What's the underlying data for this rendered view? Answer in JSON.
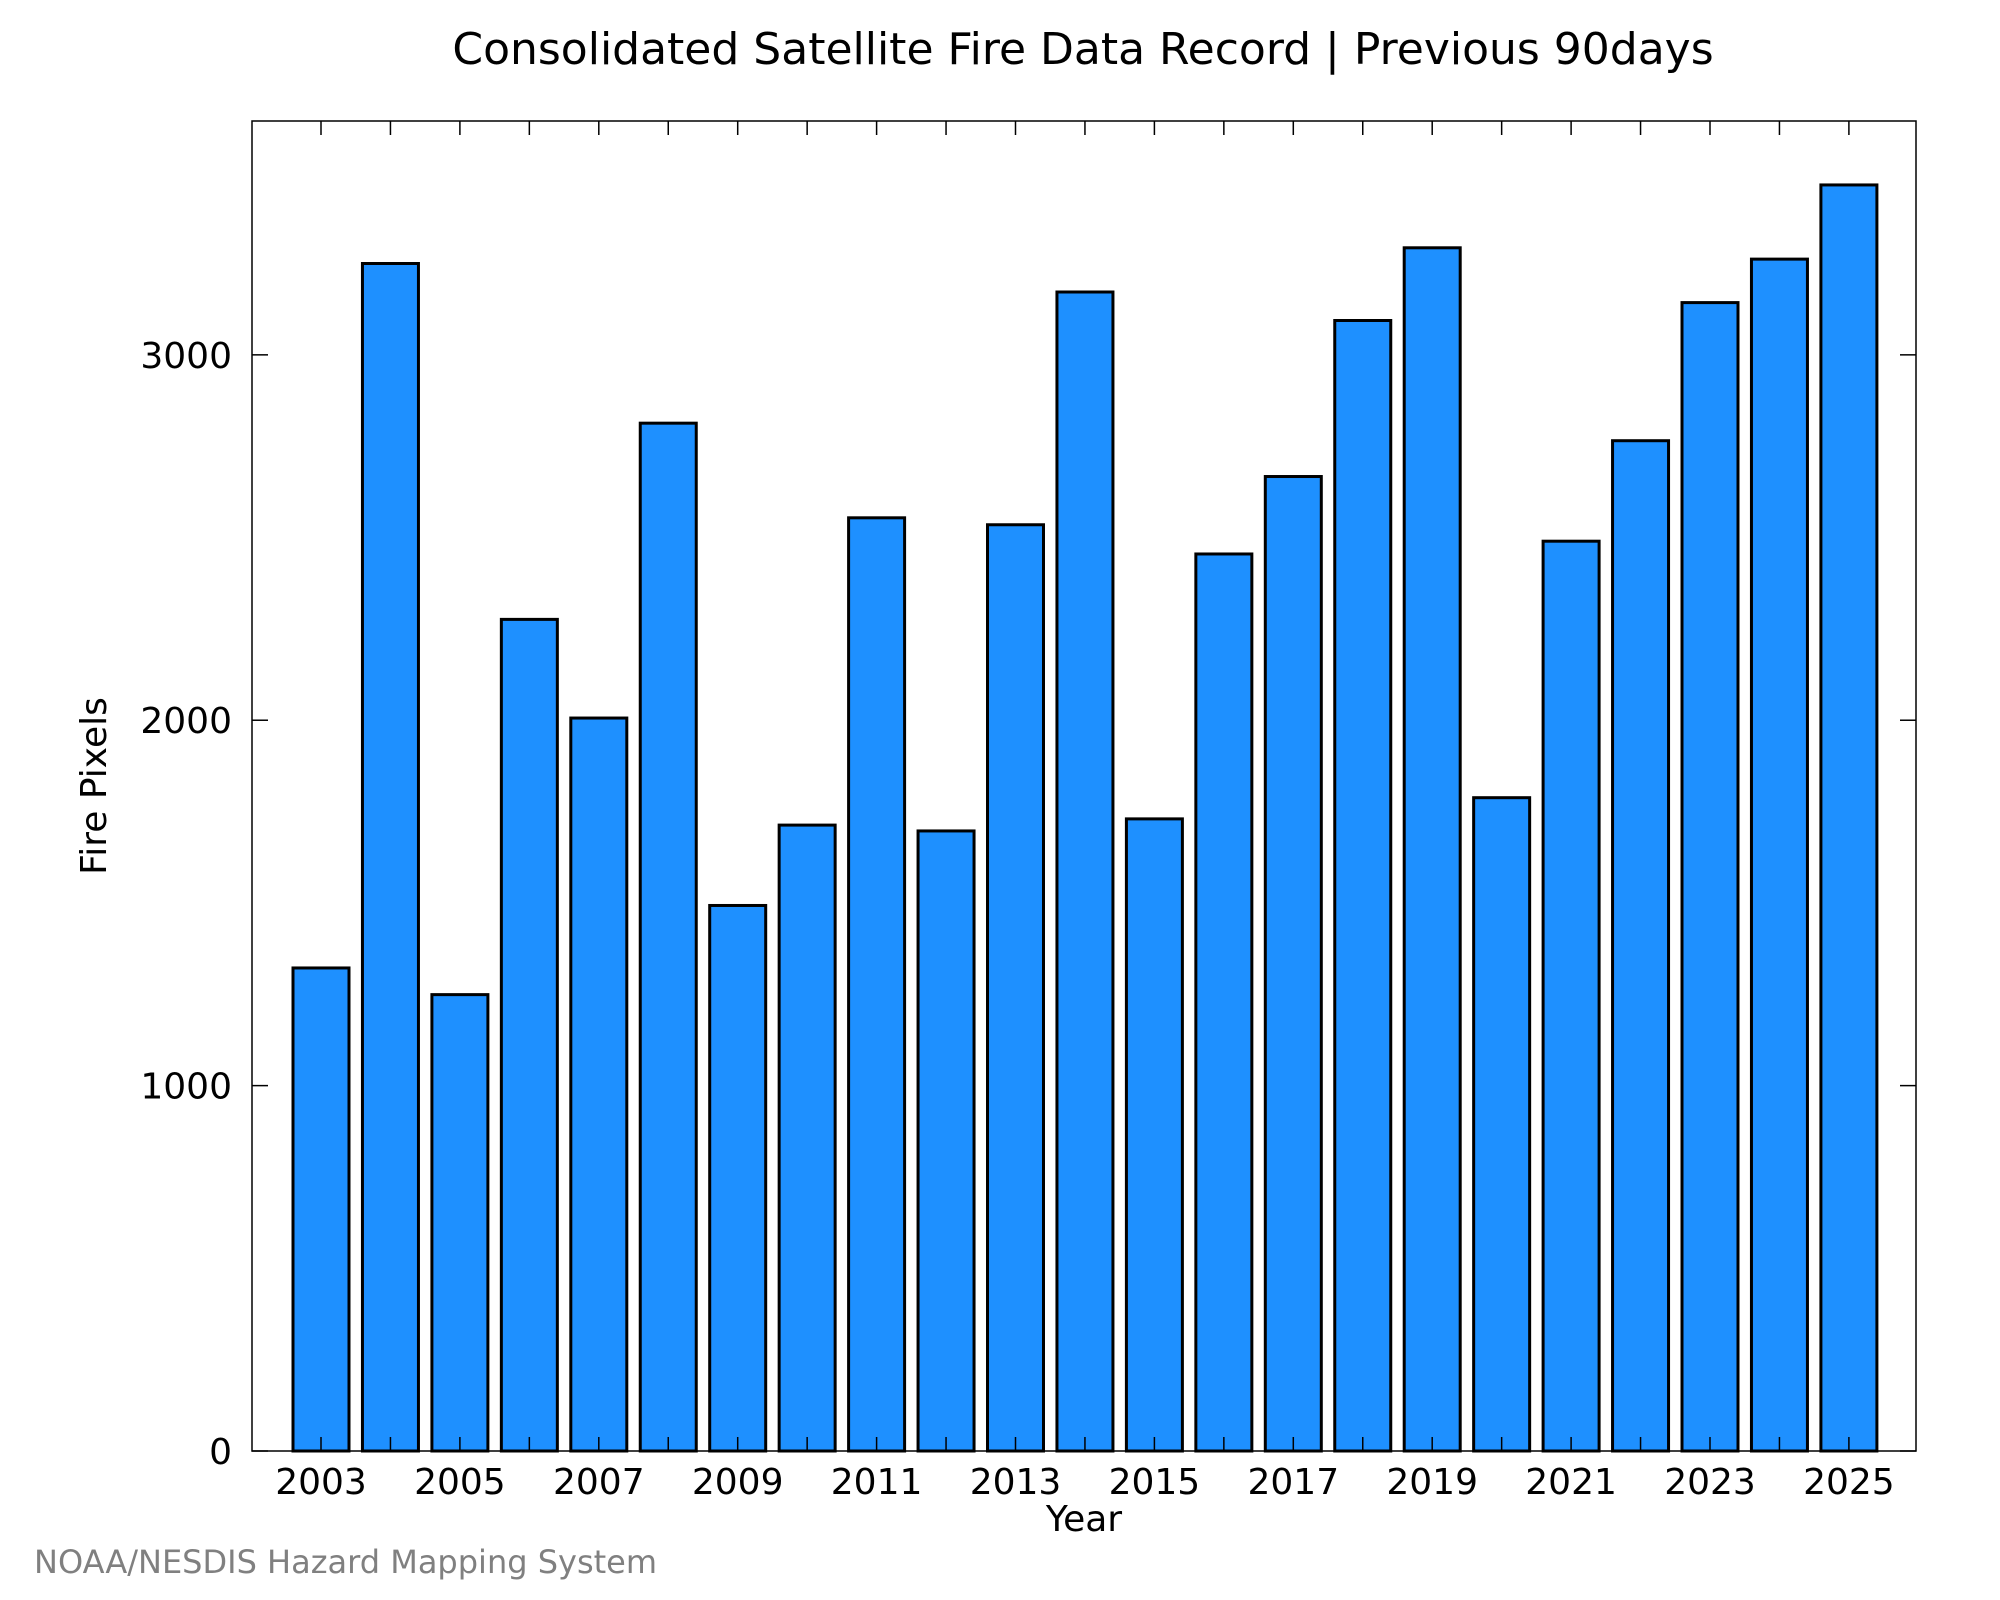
{
  "chart_data": {
    "type": "bar",
    "title": "Consolidated Satellite Fire Data Record | Previous 90days",
    "xlabel": "Year",
    "ylabel": "Fire Pixels",
    "categories": [
      "2003",
      "2004",
      "2005",
      "2006",
      "2007",
      "2008",
      "2009",
      "2010",
      "2011",
      "2012",
      "2013",
      "2014",
      "2015",
      "2016",
      "2017",
      "2018",
      "2019",
      "2020",
      "2021",
      "2022",
      "2023",
      "2024",
      "2025"
    ],
    "values": [
      1322,
      3250,
      1249,
      2276,
      2006,
      2813,
      1493,
      1713,
      2554,
      1697,
      2535,
      3172,
      1730,
      2455,
      2667,
      3094,
      3293,
      1788,
      2490,
      2765,
      3143,
      3262,
      3465
    ],
    "x_tick_labels": [
      "2003",
      "2005",
      "2007",
      "2009",
      "2011",
      "2013",
      "2015",
      "2017",
      "2019",
      "2021",
      "2023",
      "2025"
    ],
    "y_ticks": [
      0,
      1000,
      2000,
      3000
    ],
    "ylim": [
      0,
      3640
    ],
    "grid": false,
    "legend": "none",
    "bar_color": "#1e90ff",
    "edge_color": "#000000"
  },
  "footer": {
    "credit": "NOAA/NESDIS Hazard Mapping System"
  }
}
